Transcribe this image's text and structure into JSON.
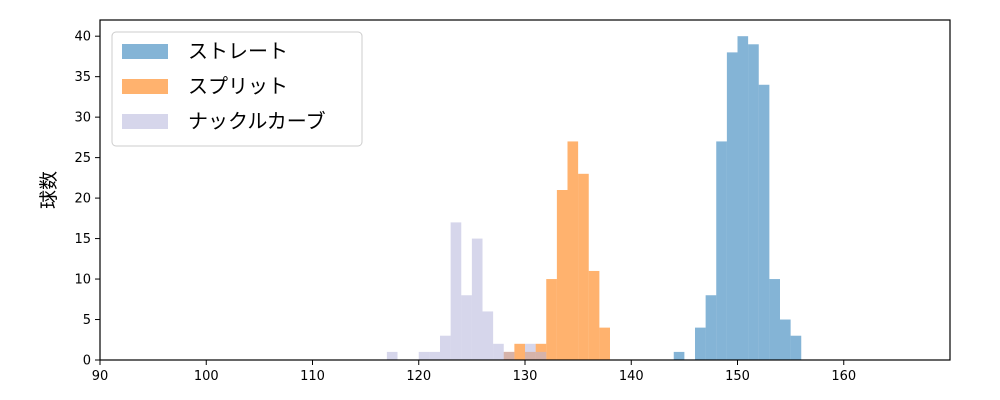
{
  "chart_data": {
    "type": "histogram",
    "title": "",
    "xlabel": "",
    "ylabel": "球数",
    "xlim": [
      90,
      170
    ],
    "ylim": [
      0,
      42
    ],
    "xticks": [
      90,
      100,
      110,
      120,
      130,
      140,
      150,
      160
    ],
    "yticks": [
      0,
      5,
      10,
      15,
      20,
      25,
      30,
      35,
      40
    ],
    "grid": false,
    "legend_position": "top-left",
    "bin_width": 1,
    "series": [
      {
        "name": "ストレート",
        "color": "#1f77b4",
        "opacity": 0.55,
        "bins": [
          [
            144,
            1
          ],
          [
            146,
            4
          ],
          [
            147,
            8
          ],
          [
            148,
            27
          ],
          [
            149,
            38
          ],
          [
            150,
            40
          ],
          [
            151,
            39
          ],
          [
            152,
            34
          ],
          [
            153,
            10
          ],
          [
            154,
            5
          ],
          [
            155,
            3
          ]
        ]
      },
      {
        "name": "スプリット",
        "color": "#ff7f0e",
        "opacity": 0.6,
        "bins": [
          [
            128,
            1
          ],
          [
            129,
            2
          ],
          [
            130,
            1
          ],
          [
            131,
            2
          ],
          [
            132,
            10
          ],
          [
            133,
            21
          ],
          [
            134,
            27
          ],
          [
            135,
            23
          ],
          [
            136,
            11
          ],
          [
            137,
            4
          ]
        ]
      },
      {
        "name": "ナックルカーブ",
        "color": "#b4b4da",
        "opacity": 0.55,
        "bins": [
          [
            117,
            1
          ],
          [
            120,
            1
          ],
          [
            121,
            1
          ],
          [
            122,
            3
          ],
          [
            123,
            17
          ],
          [
            124,
            8
          ],
          [
            125,
            15
          ],
          [
            126,
            6
          ],
          [
            127,
            2
          ],
          [
            128,
            1
          ],
          [
            130,
            2
          ],
          [
            131,
            1
          ]
        ]
      }
    ]
  }
}
